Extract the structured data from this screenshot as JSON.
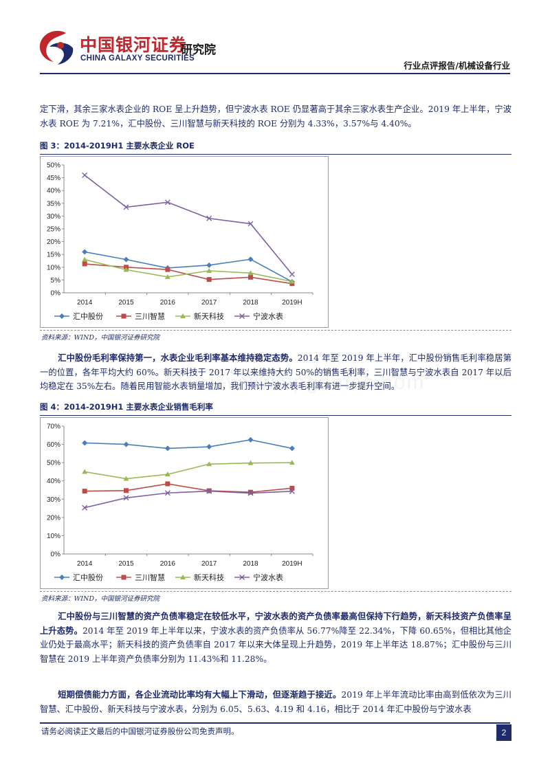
{
  "header": {
    "brand_cn": "中国银河证券",
    "brand_en": "CHINA GALAXY SECURITIES",
    "brand_inst": "研究院",
    "report_type": "行业点评报告/机械设备行业"
  },
  "paragraphs": {
    "p1": "定下滑，其余三家水表企业的 ROE 呈上升趋势，但宁波水表 ROE 仍显著高于其余三家水表生产企业。2019 年上半年，宁波水表 ROE 为 7.21%，汇中股份、三川智慧与新天科技的 ROE 分别为 4.33%，3.57%与 4.40%。",
    "p2_lead": "汇中股份毛利率保持第一，水表企业毛利率基本维持稳定态势。",
    "p2_body": "2014 年至 2019 年上半年，汇中股份销售毛利率稳居第一的位置，各年平均大约 60%。新天科技于 2017 年以来维持大约 50%的销售毛利率，三川智慧与宁波水表自 2017 年以后均稳定在 35%左右。随着民用智能水表销量增加，我们预计宁波水表毛利率有进一步提升空间。",
    "p3_lead": "汇中股份与三川智慧的资产负债率稳定在较低水平，宁波水表的资产负债率最高但保持下行趋势，新天科技资产负债率呈上升态势。",
    "p3_body": "2014 年至 2019 年上半年以来，宁波水表的资产负债率从 56.77%降至 22.34%，下降 60.65%，但相比其他企业仍处于最高水平；新天科技的资产负债率自 2017 年以来大体呈现上升趋势，2019 年上半年达 18.87%；汇中股份与三川智慧在 2019 上半年资产负债率分别为 11.43%和 11.28%。",
    "p4_lead": "短期偿债能力方面，各企业流动比率均有大幅上下滑动，但逐渐趋于接近。",
    "p4_body": "2019 年上半年流动比率由高到低依次为三川智慧、汇中股份、新天科技与宁波水表，分别为 6.05、5.63、4.19 和 4.16，相比于 2014 年汇中股份与宁波水表"
  },
  "figures": {
    "fig3_title": "图 3：2014-2019H1 主要水表企业 ROE",
    "fig4_title": "图 4：2014-2019H1 主要水表企业销售毛利率",
    "source": "资料来源：WIND，中国银河证券研究院"
  },
  "watermark": "www.vpgames.com",
  "chart_data": [
    {
      "type": "line",
      "title": "2014-2019H1 主要水表企业 ROE",
      "categories": [
        "2014",
        "2015",
        "2016",
        "2017",
        "2018",
        "2019H"
      ],
      "yticks": [
        "0%",
        "5%",
        "10%",
        "15%",
        "20%",
        "25%",
        "30%",
        "35%",
        "40%",
        "45%",
        "50%"
      ],
      "ylim": [
        0,
        50
      ],
      "legend_position": "bottom",
      "series": [
        {
          "name": "汇中股份",
          "color": "#4a7ebb",
          "marker": "diamond",
          "values": [
            16.0,
            13.0,
            9.7,
            10.8,
            13.1,
            4.33
          ]
        },
        {
          "name": "三川智慧",
          "color": "#be4b48",
          "marker": "square",
          "values": [
            11.3,
            10.0,
            9.1,
            5.2,
            6.1,
            3.57
          ]
        },
        {
          "name": "新天科技",
          "color": "#98b954",
          "marker": "triangle",
          "values": [
            13.0,
            9.0,
            6.2,
            8.6,
            7.7,
            4.4
          ]
        },
        {
          "name": "宁波水表",
          "color": "#7d60a0",
          "marker": "x",
          "values": [
            46.0,
            33.5,
            35.4,
            29.1,
            27.0,
            7.21
          ]
        }
      ]
    },
    {
      "type": "line",
      "title": "2014-2019H1 主要水表企业销售毛利率",
      "categories": [
        "2014",
        "2015",
        "2016",
        "2017",
        "2018",
        "2019H"
      ],
      "yticks": [
        "0%",
        "10%",
        "20%",
        "30%",
        "40%",
        "50%",
        "60%",
        "70%"
      ],
      "ylim": [
        0,
        70
      ],
      "legend_position": "bottom",
      "series": [
        {
          "name": "汇中股份",
          "color": "#4a7ebb",
          "marker": "diamond",
          "values": [
            60.8,
            60.0,
            57.8,
            58.7,
            62.5,
            57.8
          ]
        },
        {
          "name": "三川智慧",
          "color": "#be4b48",
          "marker": "square",
          "values": [
            34.4,
            34.7,
            38.4,
            34.6,
            33.8,
            36.0
          ]
        },
        {
          "name": "新天科技",
          "color": "#98b954",
          "marker": "triangle",
          "values": [
            45.0,
            41.2,
            43.6,
            49.2,
            49.8,
            50.0
          ]
        },
        {
          "name": "宁波水表",
          "color": "#7d60a0",
          "marker": "x",
          "values": [
            25.3,
            30.7,
            33.4,
            34.4,
            33.3,
            34.3
          ]
        }
      ]
    }
  ],
  "footer": {
    "disclaimer": "请务必阅读正文最后的中国银河证券股份公司免责声明。",
    "page": "2"
  }
}
